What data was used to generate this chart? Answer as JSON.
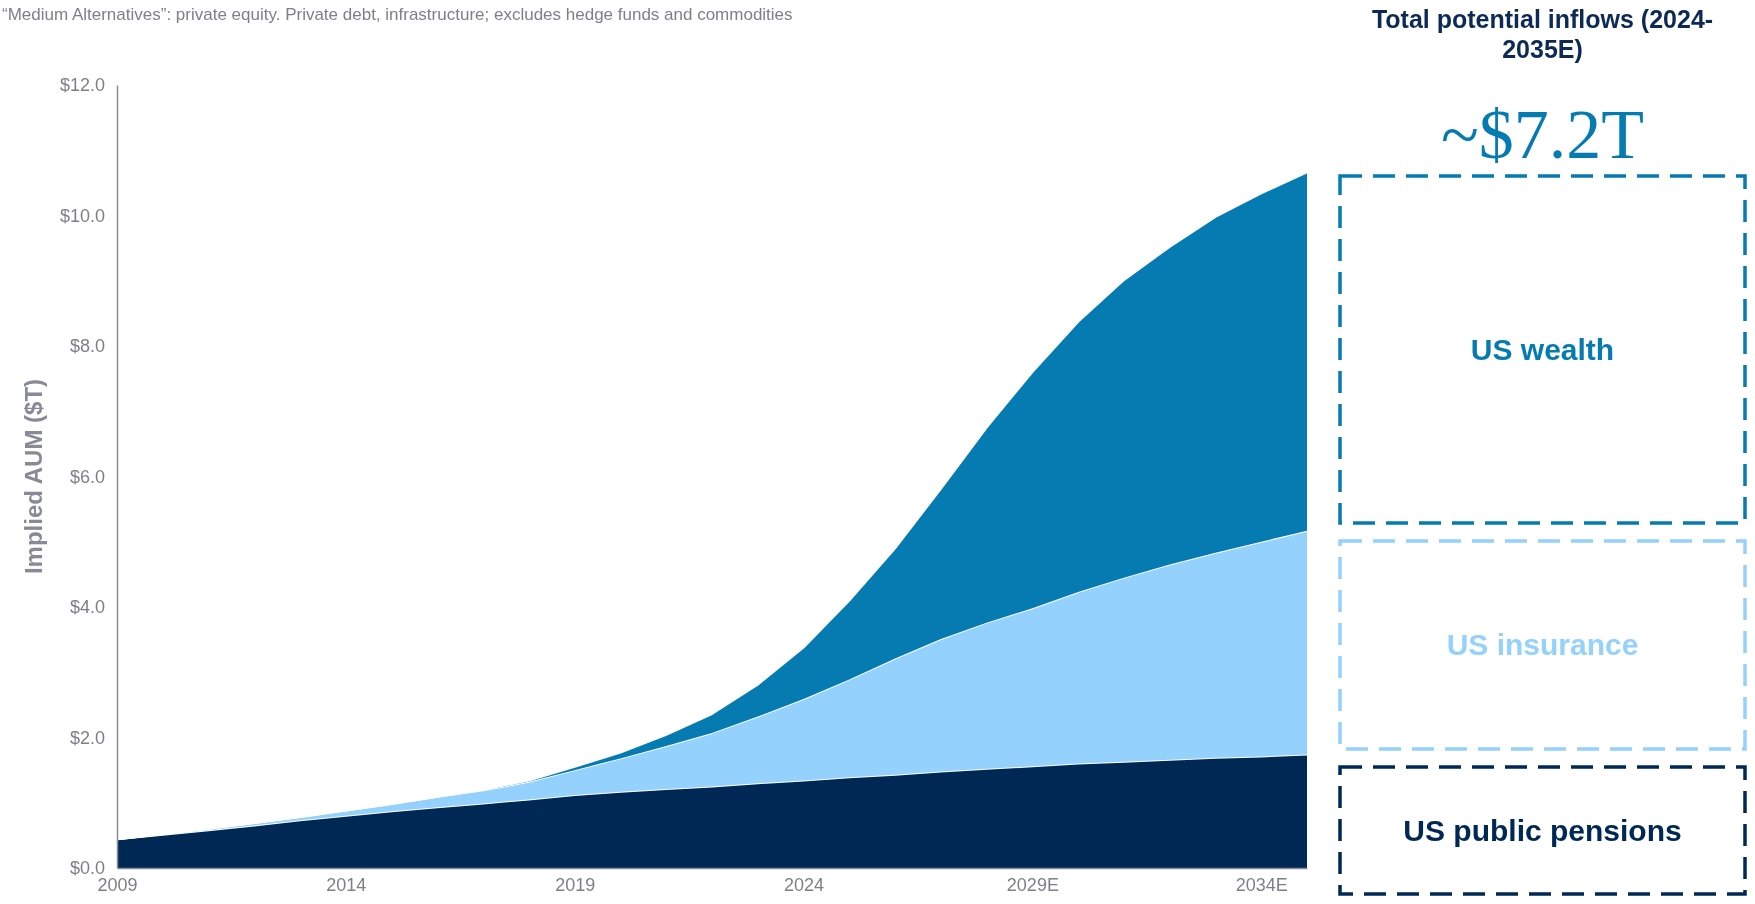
{
  "chart_data": {
    "type": "area",
    "stacked": true,
    "ylabel": "Implied AUM ($T)",
    "legend_title": "Total potential inflows (2024-2035E)",
    "annotations": [
      "“Medium Alternatives”: private equity. Private debt, infrastructure; excludes hedge funds and commodities",
      "~$7.2T"
    ],
    "x": [
      2009,
      2010,
      2011,
      2012,
      2013,
      2014,
      2015,
      2016,
      2017,
      2018,
      2019,
      2020,
      2021,
      2022,
      2023,
      2024,
      2025,
      2026,
      2027,
      2028,
      2029,
      2030,
      2031,
      2032,
      2033,
      2034,
      2035
    ],
    "xlim": [
      2009,
      2035
    ],
    "xticks": [
      2009,
      2014,
      2019,
      2024,
      {
        "value": 2029,
        "label": "2029E"
      },
      {
        "value": 2034,
        "label": "2034E"
      }
    ],
    "ylim": [
      0,
      12
    ],
    "yticks": [
      {
        "value": 0,
        "label": "$0.0"
      },
      {
        "value": 2,
        "label": "$2.0"
      },
      {
        "value": 4,
        "label": "$4.0"
      },
      {
        "value": 6,
        "label": "$6.0"
      },
      {
        "value": 8,
        "label": "$8.0"
      },
      {
        "value": 10,
        "label": "$10.0"
      },
      {
        "value": 12,
        "label": "$12.0"
      }
    ],
    "grid": false,
    "legend": "right",
    "series": [
      {
        "name": "US public pensions",
        "color": "#002855",
        "values": [
          0.44,
          0.51,
          0.58,
          0.65,
          0.73,
          0.8,
          0.87,
          0.93,
          0.99,
          1.05,
          1.12,
          1.17,
          1.21,
          1.25,
          1.3,
          1.34,
          1.39,
          1.43,
          1.48,
          1.52,
          1.56,
          1.6,
          1.63,
          1.66,
          1.69,
          1.71,
          1.74
        ]
      },
      {
        "name": "US insurance",
        "color": "#94d1fd",
        "values": [
          0,
          0.01,
          0.02,
          0.04,
          0.05,
          0.08,
          0.11,
          0.16,
          0.2,
          0.27,
          0.38,
          0.51,
          0.66,
          0.82,
          1.02,
          1.25,
          1.5,
          1.78,
          2.03,
          2.24,
          2.42,
          2.63,
          2.82,
          2.99,
          3.14,
          3.29,
          3.43
        ]
      },
      {
        "name": "US wealth",
        "color": "#057bb1",
        "values": [
          0,
          0,
          0,
          0,
          0,
          0,
          0,
          0,
          0.01,
          0.02,
          0.05,
          0.09,
          0.17,
          0.29,
          0.49,
          0.79,
          1.21,
          1.69,
          2.3,
          2.99,
          3.62,
          4.14,
          4.56,
          4.87,
          5.15,
          5.34,
          5.49
        ]
      }
    ]
  }
}
